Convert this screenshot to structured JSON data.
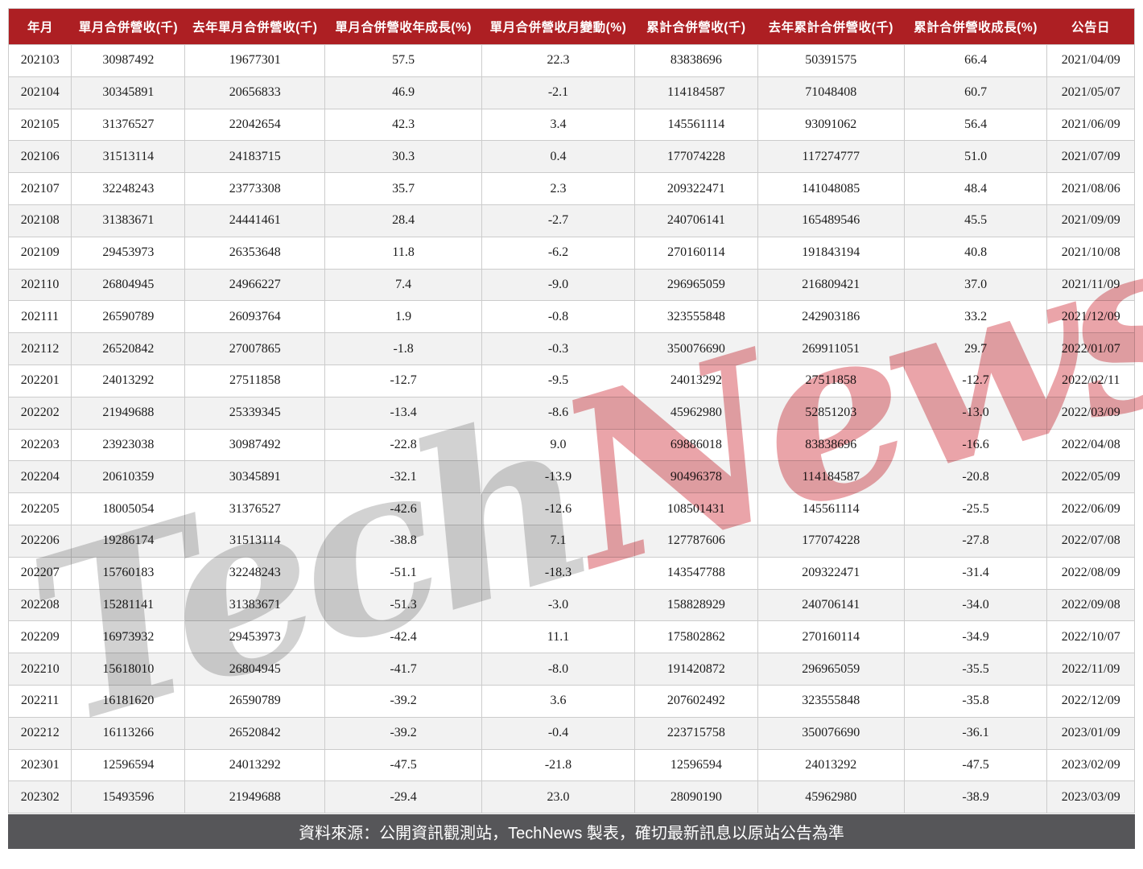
{
  "chart_data": {
    "type": "table",
    "columns": [
      "年月",
      "單月合併營收(千)",
      "去年單月合併營收(千)",
      "單月合併營收年成長(%)",
      "單月合併營收月變動(%)",
      "累計合併營收(千)",
      "去年累計合併營收(千)",
      "累計合併營收成長(%)",
      "公告日"
    ],
    "rows": [
      [
        "202103",
        "30987492",
        "19677301",
        "57.5",
        "22.3",
        "83838696",
        "50391575",
        "66.4",
        "2021/04/09"
      ],
      [
        "202104",
        "30345891",
        "20656833",
        "46.9",
        "-2.1",
        "114184587",
        "71048408",
        "60.7",
        "2021/05/07"
      ],
      [
        "202105",
        "31376527",
        "22042654",
        "42.3",
        "3.4",
        "145561114",
        "93091062",
        "56.4",
        "2021/06/09"
      ],
      [
        "202106",
        "31513114",
        "24183715",
        "30.3",
        "0.4",
        "177074228",
        "117274777",
        "51.0",
        "2021/07/09"
      ],
      [
        "202107",
        "32248243",
        "23773308",
        "35.7",
        "2.3",
        "209322471",
        "141048085",
        "48.4",
        "2021/08/06"
      ],
      [
        "202108",
        "31383671",
        "24441461",
        "28.4",
        "-2.7",
        "240706141",
        "165489546",
        "45.5",
        "2021/09/09"
      ],
      [
        "202109",
        "29453973",
        "26353648",
        "11.8",
        "-6.2",
        "270160114",
        "191843194",
        "40.8",
        "2021/10/08"
      ],
      [
        "202110",
        "26804945",
        "24966227",
        "7.4",
        "-9.0",
        "296965059",
        "216809421",
        "37.0",
        "2021/11/09"
      ],
      [
        "202111",
        "26590789",
        "26093764",
        "1.9",
        "-0.8",
        "323555848",
        "242903186",
        "33.2",
        "2021/12/09"
      ],
      [
        "202112",
        "26520842",
        "27007865",
        "-1.8",
        "-0.3",
        "350076690",
        "269911051",
        "29.7",
        "2022/01/07"
      ],
      [
        "202201",
        "24013292",
        "27511858",
        "-12.7",
        "-9.5",
        "24013292",
        "27511858",
        "-12.7",
        "2022/02/11"
      ],
      [
        "202202",
        "21949688",
        "25339345",
        "-13.4",
        "-8.6",
        "45962980",
        "52851203",
        "-13.0",
        "2022/03/09"
      ],
      [
        "202203",
        "23923038",
        "30987492",
        "-22.8",
        "9.0",
        "69886018",
        "83838696",
        "-16.6",
        "2022/04/08"
      ],
      [
        "202204",
        "20610359",
        "30345891",
        "-32.1",
        "-13.9",
        "90496378",
        "114184587",
        "-20.8",
        "2022/05/09"
      ],
      [
        "202205",
        "18005054",
        "31376527",
        "-42.6",
        "-12.6",
        "108501431",
        "145561114",
        "-25.5",
        "2022/06/09"
      ],
      [
        "202206",
        "19286174",
        "31513114",
        "-38.8",
        "7.1",
        "127787606",
        "177074228",
        "-27.8",
        "2022/07/08"
      ],
      [
        "202207",
        "15760183",
        "32248243",
        "-51.1",
        "-18.3",
        "143547788",
        "209322471",
        "-31.4",
        "2022/08/09"
      ],
      [
        "202208",
        "15281141",
        "31383671",
        "-51.3",
        "-3.0",
        "158828929",
        "240706141",
        "-34.0",
        "2022/09/08"
      ],
      [
        "202209",
        "16973932",
        "29453973",
        "-42.4",
        "11.1",
        "175802862",
        "270160114",
        "-34.9",
        "2022/10/07"
      ],
      [
        "202210",
        "15618010",
        "26804945",
        "-41.7",
        "-8.0",
        "191420872",
        "296965059",
        "-35.5",
        "2022/11/09"
      ],
      [
        "202211",
        "16181620",
        "26590789",
        "-39.2",
        "3.6",
        "207602492",
        "323555848",
        "-35.8",
        "2022/12/09"
      ],
      [
        "202212",
        "16113266",
        "26520842",
        "-39.2",
        "-0.4",
        "223715758",
        "350076690",
        "-36.1",
        "2023/01/09"
      ],
      [
        "202301",
        "12596594",
        "24013292",
        "-47.5",
        "-21.8",
        "12596594",
        "24013292",
        "-47.5",
        "2023/02/09"
      ],
      [
        "202302",
        "15493596",
        "21949688",
        "-29.4",
        "23.0",
        "28090190",
        "45962980",
        "-38.9",
        "2023/03/09"
      ]
    ],
    "title": "",
    "legend": "off",
    "grid": "on"
  },
  "watermark": {
    "part1": "Tech",
    "part2": "News"
  },
  "footer": {
    "text": "資料來源：公開資訊觀測站，TechNews 製表，確切最新訊息以原站公告為準"
  },
  "colors": {
    "header_bg": "#ad1f23",
    "stripe": "#f2f2f2",
    "border": "#cccccc",
    "footer_bg": "#565659",
    "watermark_gray": "#d2d2d2",
    "watermark_red": "#eaa4a9"
  }
}
